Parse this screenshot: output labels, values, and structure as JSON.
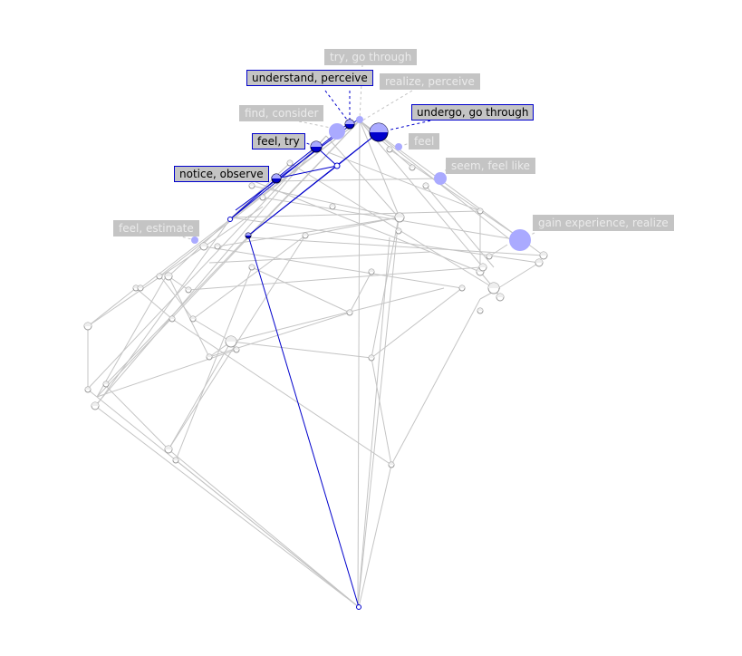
{
  "diagram": {
    "active_labels": [
      "understand, perceive",
      "undergo, go through",
      "feel, try",
      "notice, observe"
    ],
    "inactive_labels": [
      "try, go through",
      "realize, perceive",
      "find, consider",
      "feel",
      "seem, feel like",
      "feel, estimate",
      "gain experience, realize"
    ]
  },
  "colors": {
    "active": "#0000cc",
    "inactive_line": "#c4c4c4",
    "node_fill": "#aaaaff"
  }
}
